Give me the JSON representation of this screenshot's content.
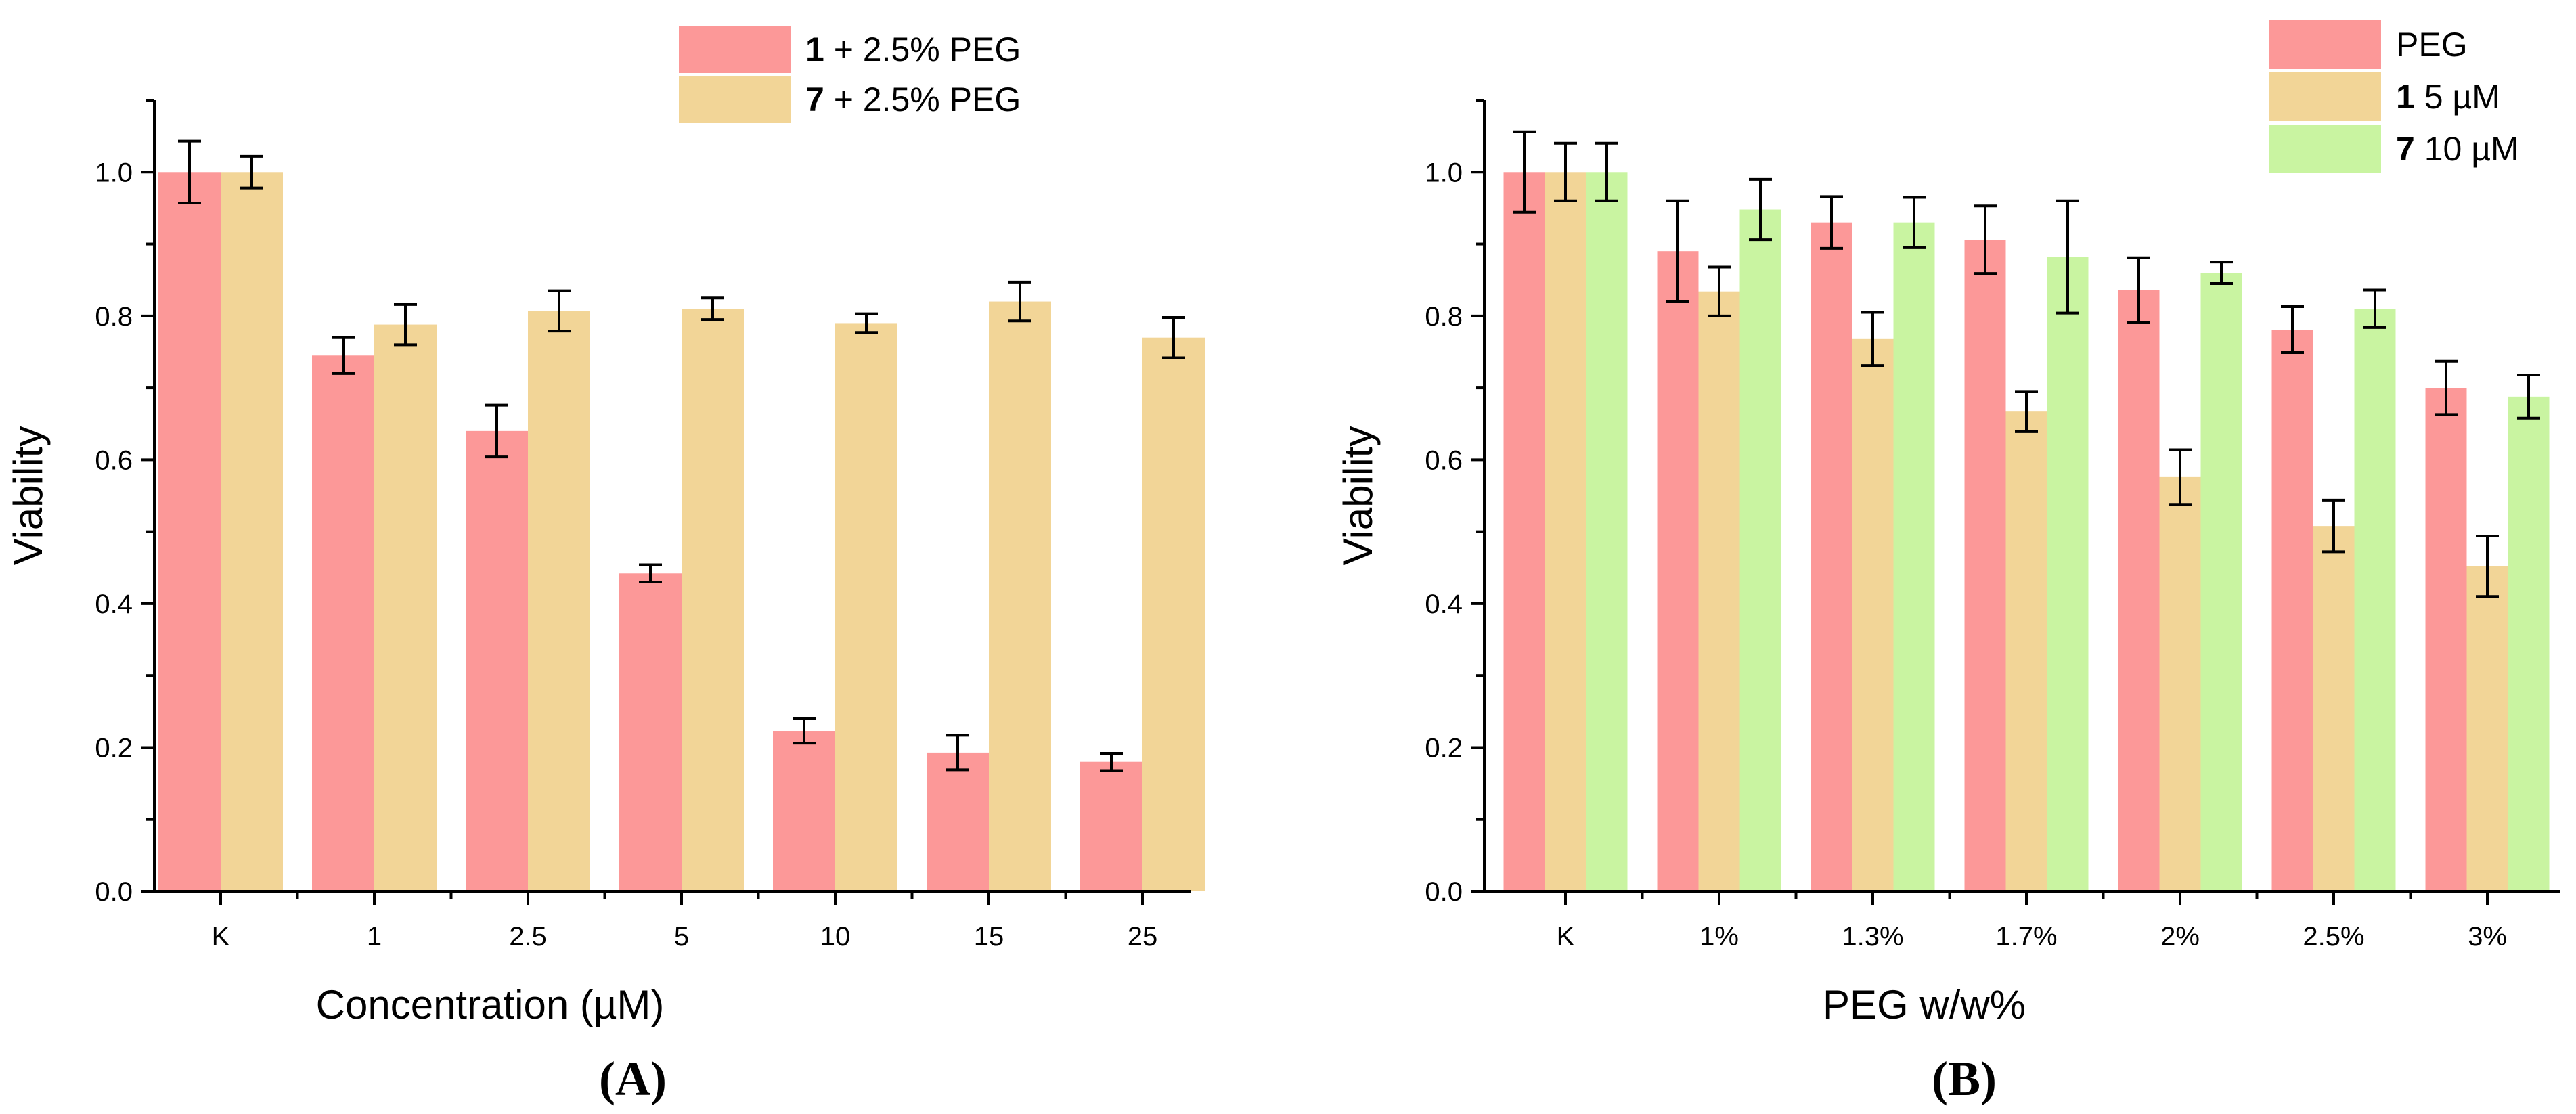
{
  "chart_data": [
    {
      "type": "bar",
      "panel_label": "(A)",
      "xlabel": "Concentration (µM)",
      "ylabel": "Viability",
      "ylim": [
        0,
        1.1
      ],
      "yticks": [
        "0.0",
        "0.2",
        "0.4",
        "0.6",
        "0.8",
        "1.0"
      ],
      "categories": [
        "K",
        "1",
        "2.5",
        "5",
        "10",
        "15",
        "25"
      ],
      "series": [
        {
          "name_bold": "1",
          "name_rest": " + 2.5% PEG",
          "color": "#fc9898",
          "values": [
            1.0,
            0.745,
            0.64,
            0.442,
            0.223,
            0.193,
            0.18
          ],
          "errors": [
            0.043,
            0.025,
            0.036,
            0.012,
            0.017,
            0.024,
            0.012
          ]
        },
        {
          "name_bold": "7",
          "name_rest": " + 2.5% PEG",
          "color": "#f2d597",
          "values": [
            1.0,
            0.788,
            0.807,
            0.81,
            0.79,
            0.82,
            0.77
          ],
          "errors": [
            0.022,
            0.028,
            0.028,
            0.015,
            0.013,
            0.027,
            0.028
          ]
        }
      ],
      "legend_position": "top-right"
    },
    {
      "type": "bar",
      "panel_label": "(B)",
      "xlabel": "PEG w/w%",
      "ylabel": "Viability",
      "ylim": [
        0,
        1.1
      ],
      "yticks": [
        "0.0",
        "0.2",
        "0.4",
        "0.6",
        "0.8",
        "1.0"
      ],
      "categories": [
        "K",
        "1%",
        "1.3%",
        "1.7%",
        "2%",
        "2.5%",
        "3%"
      ],
      "series": [
        {
          "name_bold": "",
          "name_rest": "PEG",
          "color": "#fc9898",
          "values": [
            1.0,
            0.89,
            0.93,
            0.906,
            0.836,
            0.781,
            0.7
          ],
          "errors": [
            0.056,
            0.07,
            0.036,
            0.047,
            0.045,
            0.032,
            0.037
          ]
        },
        {
          "name_bold": "1",
          "name_rest": " 5 µM",
          "color": "#f2d597",
          "values": [
            1.0,
            0.834,
            0.768,
            0.667,
            0.576,
            0.508,
            0.452
          ],
          "errors": [
            0.04,
            0.034,
            0.037,
            0.028,
            0.038,
            0.036,
            0.042
          ]
        },
        {
          "name_bold": "7",
          "name_rest": " 10 µM",
          "color": "#c9f4a1",
          "values": [
            1.0,
            0.948,
            0.93,
            0.882,
            0.86,
            0.81,
            0.688
          ],
          "errors": [
            0.04,
            0.042,
            0.035,
            0.078,
            0.015,
            0.026,
            0.03
          ]
        }
      ],
      "legend_position": "top-right"
    }
  ]
}
